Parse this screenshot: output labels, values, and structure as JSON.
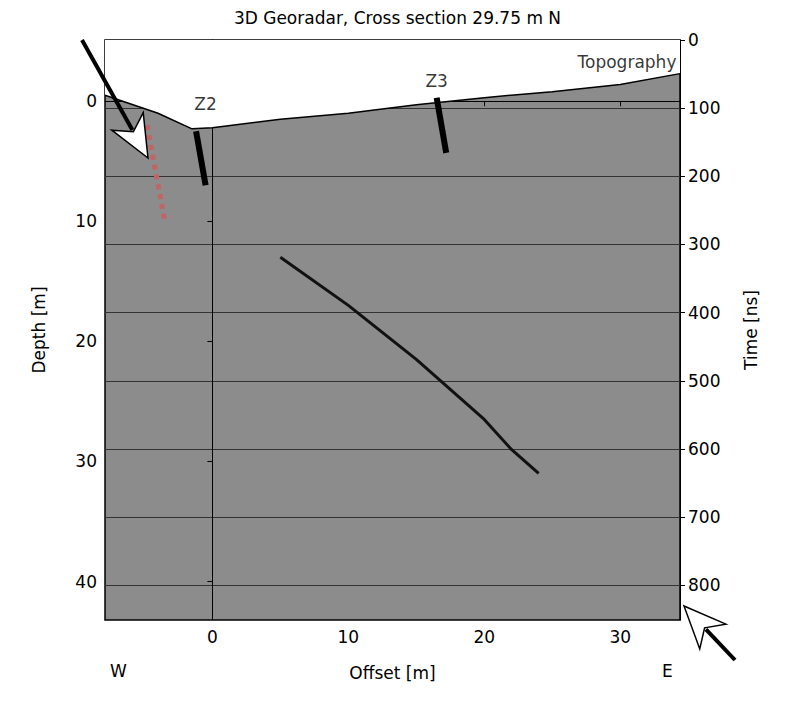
{
  "chart_data": {
    "type": "radargram",
    "title": "3D Georadar, Cross section 29.75 m N",
    "x_label": "Offset [m]",
    "y_label": "Depth [m]",
    "y2_label": "Time [ns]",
    "xlim": [
      -7.9,
      34.4
    ],
    "xticks": [
      0,
      10,
      20,
      30
    ],
    "ylim": [
      -5.1,
      43.2
    ],
    "yticks": [
      0,
      10,
      20,
      30,
      40
    ],
    "y2lim": [
      0,
      851
    ],
    "y2ticks": [
      0,
      100,
      200,
      300,
      400,
      500,
      600,
      700,
      800
    ],
    "grid": true,
    "direction_labels": {
      "left": "W",
      "right": "E"
    },
    "topography": {
      "label": "Topography",
      "x": [
        -7.9,
        -4,
        -1.5,
        0,
        5,
        10,
        15,
        20,
        25,
        30,
        34.4
      ],
      "y": [
        -0.5,
        1.0,
        2.3,
        2.2,
        1.5,
        1.0,
        0.3,
        -0.3,
        -0.8,
        -1.4,
        -2.3
      ]
    },
    "reflector": {
      "x": [
        5,
        10,
        15,
        20,
        22,
        24
      ],
      "y": [
        13,
        17,
        21.5,
        26.5,
        29,
        31
      ]
    },
    "dotted_line": {
      "x": [
        -4.8,
        -3.5
      ],
      "y": [
        2,
        10
      ],
      "color": "#c06464",
      "line_style": "dotted"
    },
    "markers": [
      {
        "label": "Z2",
        "x": [
          -1.2,
          -0.5
        ],
        "y": [
          2.5,
          7
        ],
        "label_x": -0.5,
        "label_y": 0.2
      },
      {
        "label": "Z3",
        "x": [
          16.5,
          17.2
        ],
        "y": [
          -0.3,
          4.3
        ],
        "label_x": 16.5,
        "label_y": -1.7
      }
    ],
    "annotations": [
      {
        "text": "Topography",
        "x": 30.5,
        "y": -3.3
      }
    ]
  }
}
